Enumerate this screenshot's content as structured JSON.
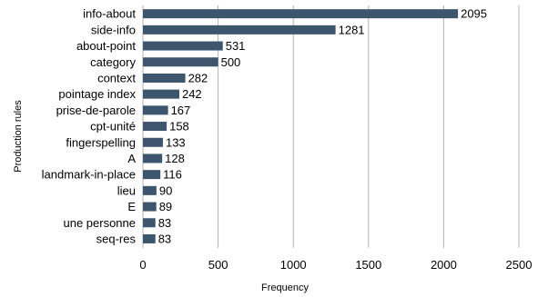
{
  "chart_data": {
    "type": "bar",
    "orientation": "horizontal",
    "categories": [
      "info-about",
      "side-info",
      "about-point",
      "category",
      "context",
      "pointage index",
      "prise-de-parole",
      "cpt-unité",
      "fingerspelling",
      "A",
      "landmark-in-place",
      "lieu",
      "E",
      "une personne",
      "seq-res"
    ],
    "values": [
      2095,
      1281,
      531,
      500,
      282,
      242,
      167,
      158,
      133,
      128,
      116,
      90,
      89,
      83,
      83
    ],
    "xlabel": "Frequency",
    "ylabel": "Production rules",
    "xlim": [
      0,
      2500
    ],
    "xticks": [
      0,
      500,
      1000,
      1500,
      2000,
      2500
    ],
    "grid": true,
    "bar_color": "#3d566e",
    "grid_color": "#b3b3b3"
  }
}
